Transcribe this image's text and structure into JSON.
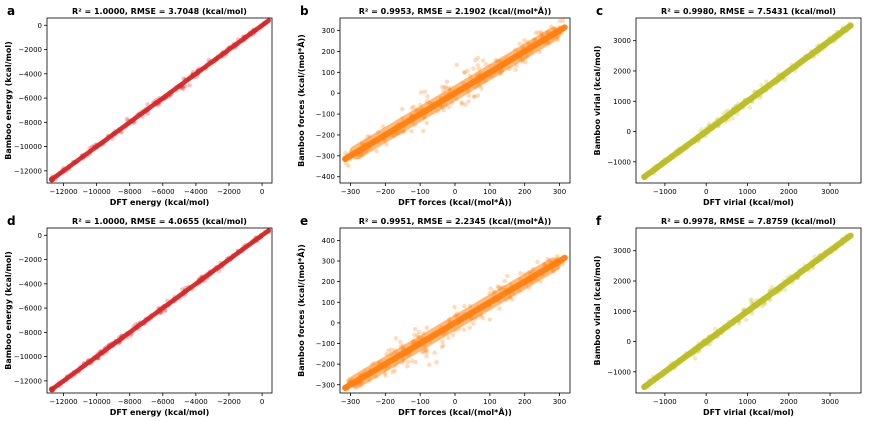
{
  "chart_data": [
    {
      "letter": "a",
      "type": "scatter",
      "title": "R² = 1.0000, RMSE = 3.7048 (kcal/mol)",
      "xlabel": "DFT energy (kcal/mol)",
      "ylabel": "Bamboo energy (kcal/mol)",
      "xlim": [
        -13000,
        600
      ],
      "ylim": [
        -13000,
        600
      ],
      "xticks": [
        -12000,
        -10000,
        -8000,
        -6000,
        -4000,
        -2000,
        0
      ],
      "yticks": [
        -12000,
        -10000,
        -8000,
        -6000,
        -4000,
        -2000,
        0
      ],
      "xtick_labels": [
        "−12000",
        "−10000",
        "−8000",
        "−6000",
        "−4000",
        "−2000",
        "0"
      ],
      "ytick_labels": [
        "−12000",
        "−10000",
        "−8000",
        "−6000",
        "−4000",
        "−2000",
        "0"
      ],
      "color": "#d62728",
      "data_range": [
        -12700,
        400
      ],
      "spread": 120
    },
    {
      "letter": "b",
      "type": "scatter",
      "title": "R² = 0.9953, RMSE = 2.1902 (kcal/(mol*Å))",
      "xlabel": "DFT forces (kcal/(mol*Å))",
      "ylabel": "Bamboo forces (kcal/(mol*Å))",
      "xlim": [
        -330,
        330
      ],
      "ylim": [
        -430,
        360
      ],
      "xticks": [
        -300,
        -200,
        -100,
        0,
        100,
        200,
        300
      ],
      "yticks": [
        -400,
        -300,
        -200,
        -100,
        0,
        100,
        200,
        300
      ],
      "xtick_labels": [
        "−300",
        "−200",
        "−100",
        "0",
        "100",
        "200",
        "300"
      ],
      "ytick_labels": [
        "−400",
        "−300",
        "−200",
        "−100",
        "0",
        "100",
        "200",
        "300"
      ],
      "color": "#ff7f0e",
      "data_range": [
        -315,
        315
      ],
      "spread": 30
    },
    {
      "letter": "c",
      "type": "scatter",
      "title": "R² = 0.9980, RMSE = 7.5431 (kcal/mol)",
      "xlabel": "DFT virial (kcal/mol)",
      "ylabel": "Bamboo virial (kcal/mol)",
      "xlim": [
        -1700,
        3750
      ],
      "ylim": [
        -1700,
        3750
      ],
      "xticks": [
        -1000,
        0,
        1000,
        2000,
        3000
      ],
      "yticks": [
        -1000,
        0,
        1000,
        2000,
        3000
      ],
      "xtick_labels": [
        "−1000",
        "0",
        "1000",
        "2000",
        "3000"
      ],
      "ytick_labels": [
        "−1000",
        "0",
        "1000",
        "2000",
        "3000"
      ],
      "color": "#bcbd22",
      "data_range": [
        -1500,
        3500
      ],
      "spread": 70
    },
    {
      "letter": "d",
      "type": "scatter",
      "title": "R² = 1.0000, RMSE = 4.0655 (kcal/mol)",
      "xlabel": "DFT energy (kcal/mol)",
      "ylabel": "Bamboo energy (kcal/mol)",
      "xlim": [
        -13000,
        600
      ],
      "ylim": [
        -13000,
        600
      ],
      "xticks": [
        -12000,
        -10000,
        -8000,
        -6000,
        -4000,
        -2000,
        0
      ],
      "yticks": [
        -12000,
        -10000,
        -8000,
        -6000,
        -4000,
        -2000,
        0
      ],
      "xtick_labels": [
        "−12000",
        "−10000",
        "−8000",
        "−6000",
        "−4000",
        "−2000",
        "0"
      ],
      "ytick_labels": [
        "−12000",
        "−10000",
        "−8000",
        "−6000",
        "−4000",
        "−2000",
        "0"
      ],
      "color": "#d62728",
      "data_range": [
        -12700,
        400
      ],
      "spread": 120
    },
    {
      "letter": "e",
      "type": "scatter",
      "title": "R² = 0.9951, RMSE = 2.2345 (kcal/(mol*Å))",
      "xlabel": "DFT forces (kcal/(mol*Å))",
      "ylabel": "Bamboo forces (kcal/(mol*Å))",
      "xlim": [
        -330,
        330
      ],
      "ylim": [
        -340,
        460
      ],
      "xticks": [
        -300,
        -200,
        -100,
        0,
        100,
        200,
        300
      ],
      "yticks": [
        -300,
        -200,
        -100,
        0,
        100,
        200,
        300,
        400
      ],
      "xtick_labels": [
        "−300",
        "−200",
        "−100",
        "0",
        "100",
        "200",
        "300"
      ],
      "ytick_labels": [
        "−300",
        "−200",
        "−100",
        "0",
        "100",
        "200",
        "300",
        "400"
      ],
      "color": "#ff7f0e",
      "data_range": [
        -315,
        315
      ],
      "spread": 30
    },
    {
      "letter": "f",
      "type": "scatter",
      "title": "R² = 0.9978, RMSE = 7.8759 (kcal/mol)",
      "xlabel": "DFT virial (kcal/mol)",
      "ylabel": "Bamboo virial (kcal/mol)",
      "xlim": [
        -1700,
        3750
      ],
      "ylim": [
        -1700,
        3750
      ],
      "xticks": [
        -1000,
        0,
        1000,
        2000,
        3000
      ],
      "yticks": [
        -1000,
        0,
        1000,
        2000,
        3000
      ],
      "xtick_labels": [
        "−1000",
        "0",
        "1000",
        "2000",
        "3000"
      ],
      "ytick_labels": [
        "−1000",
        "0",
        "1000",
        "2000",
        "3000"
      ],
      "color": "#bcbd22",
      "data_range": [
        -1500,
        3500
      ],
      "spread": 70
    }
  ]
}
